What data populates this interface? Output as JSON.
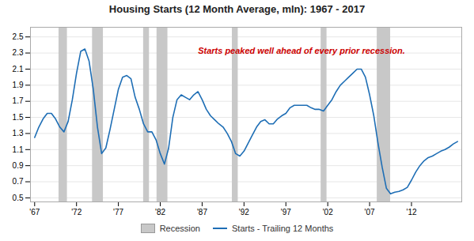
{
  "chart_data": {
    "type": "line",
    "title": "Housing Starts (12 Month Average, mln): 1967 - 2017",
    "x": [
      1967.0,
      1967.5,
      1968.0,
      1968.5,
      1969.0,
      1969.5,
      1970.0,
      1970.5,
      1971.0,
      1971.5,
      1972.0,
      1972.5,
      1973.0,
      1973.5,
      1974.0,
      1974.5,
      1975.0,
      1975.5,
      1976.0,
      1976.5,
      1977.0,
      1977.5,
      1978.0,
      1978.5,
      1979.0,
      1979.5,
      1980.0,
      1980.5,
      1981.0,
      1981.5,
      1982.0,
      1982.5,
      1983.0,
      1983.5,
      1984.0,
      1984.5,
      1985.0,
      1985.5,
      1986.0,
      1986.5,
      1987.0,
      1987.5,
      1988.0,
      1988.5,
      1989.0,
      1989.5,
      1990.0,
      1990.5,
      1991.0,
      1991.5,
      1992.0,
      1992.5,
      1993.0,
      1993.5,
      1994.0,
      1994.5,
      1995.0,
      1995.5,
      1996.0,
      1996.5,
      1997.0,
      1997.5,
      1998.0,
      1998.5,
      1999.0,
      1999.5,
      2000.0,
      2000.5,
      2001.0,
      2001.5,
      2002.0,
      2002.5,
      2003.0,
      2003.5,
      2004.0,
      2004.5,
      2005.0,
      2005.5,
      2006.0,
      2006.5,
      2007.0,
      2007.5,
      2008.0,
      2008.5,
      2009.0,
      2009.5,
      2010.0,
      2010.5,
      2011.0,
      2011.5,
      2012.0,
      2012.5,
      2013.0,
      2013.5,
      2014.0,
      2014.5,
      2015.0,
      2015.5,
      2016.0,
      2016.5,
      2017.0,
      2017.5
    ],
    "series": [
      {
        "name": "Starts - Trailing 12 Months",
        "color": "#1e6eb5",
        "values": [
          1.25,
          1.38,
          1.48,
          1.55,
          1.55,
          1.48,
          1.38,
          1.32,
          1.45,
          1.72,
          2.05,
          2.32,
          2.35,
          2.2,
          1.85,
          1.38,
          1.05,
          1.12,
          1.35,
          1.6,
          1.85,
          2.0,
          2.02,
          1.98,
          1.75,
          1.6,
          1.42,
          1.32,
          1.32,
          1.22,
          1.05,
          0.92,
          1.12,
          1.5,
          1.72,
          1.78,
          1.75,
          1.72,
          1.78,
          1.82,
          1.72,
          1.6,
          1.52,
          1.47,
          1.42,
          1.38,
          1.3,
          1.2,
          1.05,
          1.02,
          1.08,
          1.18,
          1.28,
          1.38,
          1.45,
          1.47,
          1.42,
          1.42,
          1.48,
          1.52,
          1.55,
          1.62,
          1.65,
          1.65,
          1.65,
          1.65,
          1.62,
          1.6,
          1.6,
          1.58,
          1.65,
          1.72,
          1.82,
          1.9,
          1.95,
          2.0,
          2.05,
          2.1,
          2.1,
          2.0,
          1.78,
          1.52,
          1.18,
          0.88,
          0.62,
          0.55,
          0.57,
          0.58,
          0.6,
          0.63,
          0.72,
          0.82,
          0.9,
          0.96,
          1.0,
          1.02,
          1.05,
          1.08,
          1.1,
          1.13,
          1.17,
          1.2
        ]
      }
    ],
    "recessions": {
      "name": "Recession",
      "color": "#c8c8c8",
      "spans": [
        [
          1969.9,
          1970.9
        ],
        [
          1973.9,
          1975.2
        ],
        [
          1980.0,
          1980.7
        ],
        [
          1981.6,
          1982.9
        ],
        [
          1990.6,
          1991.3
        ],
        [
          2001.2,
          2001.9
        ],
        [
          2007.9,
          2009.5
        ]
      ]
    },
    "annotations": [
      {
        "text": "Starts peaked well ahead of every prior recession.",
        "x": 1986.5,
        "y": 2.33,
        "color": "#cc0000"
      }
    ],
    "xlim": [
      1966.5,
      2018
    ],
    "xticks": [
      {
        "value": 1967,
        "label": "'67"
      },
      {
        "value": 1972,
        "label": "'72"
      },
      {
        "value": 1977,
        "label": "'77"
      },
      {
        "value": 1982,
        "label": "'82"
      },
      {
        "value": 1987,
        "label": "'87"
      },
      {
        "value": 1992,
        "label": "'92"
      },
      {
        "value": 1997,
        "label": "'97"
      },
      {
        "value": 2002,
        "label": "'02"
      },
      {
        "value": 2007,
        "label": "'07"
      },
      {
        "value": 2012,
        "label": "'12"
      }
    ],
    "ylim": [
      0.45,
      2.62
    ],
    "yticks": [
      0.5,
      0.7,
      0.9,
      1.1,
      1.3,
      1.5,
      1.7,
      1.9,
      2.1,
      2.3,
      2.5
    ],
    "grid": true,
    "legend": "bottom"
  }
}
